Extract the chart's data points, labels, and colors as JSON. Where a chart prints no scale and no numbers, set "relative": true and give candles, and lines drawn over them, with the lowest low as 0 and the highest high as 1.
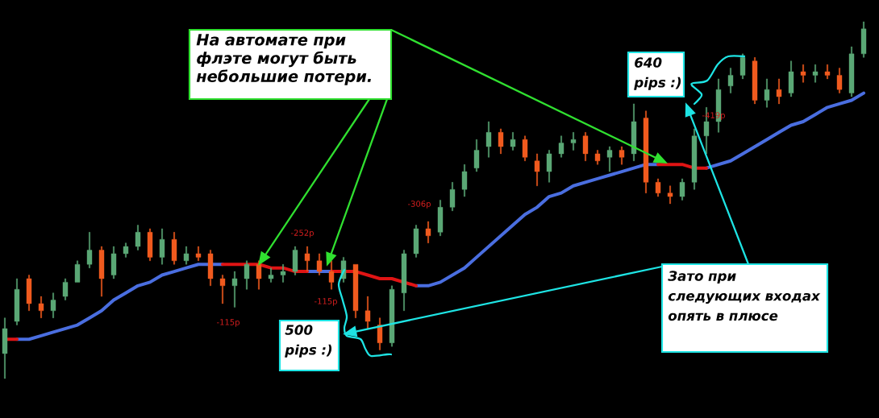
{
  "chart_data": {
    "type": "candlestick",
    "relative": true,
    "categories": [
      null,
      null,
      null,
      null,
      null,
      null,
      null,
      null,
      null,
      null,
      null,
      null,
      null,
      null,
      null,
      null,
      null,
      null,
      null,
      null,
      null,
      null,
      null,
      null,
      null,
      null,
      null,
      null,
      null,
      null,
      null,
      null,
      null,
      null,
      null,
      null,
      null,
      null,
      null,
      null,
      null,
      null,
      null,
      null,
      null,
      null,
      null,
      null,
      null,
      null,
      null,
      null,
      null,
      null,
      null,
      null,
      null,
      null,
      null,
      null,
      null,
      null,
      null,
      null,
      null,
      null,
      null,
      null,
      null,
      null,
      null,
      null
    ],
    "ohlc": [
      [
        0.07,
        0.17,
        0.0,
        0.14
      ],
      [
        0.16,
        0.28,
        0.15,
        0.25
      ],
      [
        0.28,
        0.29,
        0.19,
        0.21
      ],
      [
        0.21,
        0.23,
        0.17,
        0.19
      ],
      [
        0.19,
        0.24,
        0.17,
        0.22
      ],
      [
        0.23,
        0.28,
        0.22,
        0.27
      ],
      [
        0.27,
        0.33,
        0.27,
        0.32
      ],
      [
        0.32,
        0.41,
        0.31,
        0.36
      ],
      [
        0.36,
        0.37,
        0.23,
        0.28
      ],
      [
        0.29,
        0.37,
        0.28,
        0.35
      ],
      [
        0.35,
        0.38,
        0.34,
        0.37
      ],
      [
        0.37,
        0.43,
        0.36,
        0.41
      ],
      [
        0.41,
        0.42,
        0.33,
        0.34
      ],
      [
        0.34,
        0.42,
        0.32,
        0.39
      ],
      [
        0.39,
        0.41,
        0.32,
        0.33
      ],
      [
        0.33,
        0.37,
        0.32,
        0.35
      ],
      [
        0.35,
        0.37,
        0.33,
        0.34
      ],
      [
        0.35,
        0.36,
        0.26,
        0.28
      ],
      [
        0.28,
        0.29,
        0.21,
        0.26
      ],
      [
        0.26,
        0.3,
        0.2,
        0.28
      ],
      [
        0.28,
        0.33,
        0.25,
        0.32
      ],
      [
        0.32,
        0.33,
        0.25,
        0.28
      ],
      [
        0.28,
        0.31,
        0.27,
        0.29
      ],
      [
        0.29,
        0.32,
        0.27,
        0.3
      ],
      [
        0.3,
        0.37,
        0.29,
        0.36
      ],
      [
        0.35,
        0.37,
        0.3,
        0.33
      ],
      [
        0.33,
        0.35,
        0.29,
        0.3
      ],
      [
        0.3,
        0.33,
        0.25,
        0.27
      ],
      [
        0.28,
        0.34,
        0.27,
        0.33
      ],
      [
        0.32,
        0.32,
        0.17,
        0.19
      ],
      [
        0.19,
        0.23,
        0.14,
        0.16
      ],
      [
        0.15,
        0.17,
        0.08,
        0.1
      ],
      [
        0.1,
        0.26,
        0.09,
        0.25
      ],
      [
        0.24,
        0.36,
        0.19,
        0.35
      ],
      [
        0.35,
        0.43,
        0.34,
        0.42
      ],
      [
        0.42,
        0.44,
        0.38,
        0.4
      ],
      [
        0.41,
        0.5,
        0.4,
        0.48
      ],
      [
        0.48,
        0.55,
        0.47,
        0.53
      ],
      [
        0.53,
        0.6,
        0.51,
        0.58
      ],
      [
        0.59,
        0.67,
        0.58,
        0.64
      ],
      [
        0.65,
        0.72,
        0.62,
        0.69
      ],
      [
        0.69,
        0.7,
        0.63,
        0.65
      ],
      [
        0.65,
        0.69,
        0.64,
        0.67
      ],
      [
        0.67,
        0.68,
        0.61,
        0.62
      ],
      [
        0.61,
        0.63,
        0.54,
        0.58
      ],
      [
        0.58,
        0.64,
        0.55,
        0.63
      ],
      [
        0.63,
        0.68,
        0.62,
        0.66
      ],
      [
        0.66,
        0.69,
        0.64,
        0.67
      ],
      [
        0.68,
        0.69,
        0.61,
        0.63
      ],
      [
        0.63,
        0.64,
        0.6,
        0.61
      ],
      [
        0.62,
        0.65,
        0.58,
        0.64
      ],
      [
        0.64,
        0.65,
        0.6,
        0.62
      ],
      [
        0.63,
        0.77,
        0.61,
        0.72
      ],
      [
        0.73,
        0.75,
        0.52,
        0.55
      ],
      [
        0.55,
        0.56,
        0.51,
        0.52
      ],
      [
        0.52,
        0.54,
        0.49,
        0.51
      ],
      [
        0.51,
        0.56,
        0.5,
        0.55
      ],
      [
        0.55,
        0.7,
        0.53,
        0.68
      ],
      [
        0.68,
        0.76,
        0.63,
        0.72
      ],
      [
        0.72,
        0.84,
        0.69,
        0.81
      ],
      [
        0.82,
        0.87,
        0.8,
        0.85
      ],
      [
        0.85,
        0.91,
        0.84,
        0.9
      ],
      [
        0.89,
        0.9,
        0.77,
        0.78
      ],
      [
        0.78,
        0.84,
        0.76,
        0.81
      ],
      [
        0.81,
        0.84,
        0.77,
        0.79
      ],
      [
        0.8,
        0.89,
        0.79,
        0.86
      ],
      [
        0.86,
        0.88,
        0.83,
        0.85
      ],
      [
        0.85,
        0.88,
        0.83,
        0.86
      ],
      [
        0.86,
        0.88,
        0.84,
        0.85
      ],
      [
        0.85,
        0.87,
        0.8,
        0.81
      ],
      [
        0.8,
        0.93,
        0.79,
        0.91
      ],
      [
        0.91,
        1.0,
        0.9,
        0.98
      ]
    ],
    "colors": [
      "#5aa775",
      "#5aa775",
      "#f05a1e",
      "#f05a1e",
      "#5aa775",
      "#5aa775",
      "#5aa775",
      "#5aa775",
      "#f05a1e",
      "#5aa775",
      "#5aa775",
      "#5aa775",
      "#f05a1e",
      "#5aa775",
      "#f05a1e",
      "#5aa775",
      "#f05a1e",
      "#f05a1e",
      "#f05a1e",
      "#5aa775",
      "#5aa775",
      "#f05a1e",
      "#5aa775",
      "#5aa775",
      "#5aa775",
      "#f05a1e",
      "#f05a1e",
      "#f05a1e",
      "#5aa775",
      "#f05a1e",
      "#f05a1e",
      "#f05a1e",
      "#5aa775",
      "#5aa775",
      "#5aa775",
      "#f05a1e",
      "#5aa775",
      "#5aa775",
      "#5aa775",
      "#5aa775",
      "#5aa775",
      "#f05a1e",
      "#5aa775",
      "#f05a1e",
      "#f05a1e",
      "#5aa775",
      "#5aa775",
      "#5aa775",
      "#f05a1e",
      "#f05a1e",
      "#5aa775",
      "#f05a1e",
      "#5aa775",
      "#f05a1e",
      "#f05a1e",
      "#f05a1e",
      "#5aa775",
      "#5aa775",
      "#5aa775",
      "#5aa775",
      "#5aa775",
      "#5aa775",
      "#f05a1e",
      "#5aa775",
      "#f05a1e",
      "#5aa775",
      "#f05a1e",
      "#5aa775",
      "#f05a1e",
      "#f05a1e",
      "#5aa775",
      "#5aa775"
    ],
    "series": [
      {
        "type": "line",
        "color": "#4a6ee0",
        "values": [
          null,
          0.11,
          0.11,
          0.12,
          0.13,
          0.14,
          0.15,
          0.17,
          0.19,
          0.22,
          0.24,
          0.26,
          0.27,
          0.29,
          0.3,
          0.31,
          0.32,
          0.32,
          0.32,
          null,
          null,
          null,
          null,
          null,
          null,
          0.3,
          0.3,
          0.3,
          null,
          null,
          null,
          null,
          null,
          null,
          0.26,
          0.26,
          0.27,
          0.29,
          0.31,
          0.34,
          0.37,
          0.4,
          0.43,
          0.46,
          0.48,
          0.51,
          0.52,
          0.54,
          0.55,
          0.56,
          0.57,
          0.58,
          0.59,
          0.6,
          0.6,
          null,
          null,
          null,
          0.59,
          0.6,
          0.61,
          0.63,
          0.65,
          0.67,
          0.69,
          0.71,
          0.72,
          0.74,
          0.76,
          0.77,
          0.78,
          0.8
        ]
      },
      {
        "type": "line",
        "color": "#e01414",
        "values": [
          0.11,
          0.11,
          null,
          null,
          null,
          null,
          null,
          null,
          null,
          null,
          null,
          null,
          null,
          null,
          null,
          null,
          null,
          null,
          0.32,
          0.32,
          0.32,
          0.32,
          0.31,
          0.31,
          0.3,
          0.3,
          null,
          0.3,
          0.3,
          0.3,
          0.29,
          0.28,
          0.28,
          0.27,
          0.26,
          null,
          null,
          null,
          null,
          null,
          null,
          null,
          null,
          null,
          null,
          null,
          null,
          null,
          null,
          null,
          null,
          null,
          null,
          null,
          0.6,
          0.6,
          0.6,
          0.59,
          0.59,
          null,
          null,
          null,
          null,
          null,
          null,
          null,
          null,
          null,
          null,
          null,
          null,
          null
        ]
      }
    ],
    "annotations": [
      "На автомате при флэте могут быть небольшие потери.",
      "640 pips :)",
      "500 pips :)",
      "Зато при следующих входах опять в плюсе",
      "-115p",
      "-252p",
      "-115p",
      "-306p",
      "-419p"
    ]
  }
}
